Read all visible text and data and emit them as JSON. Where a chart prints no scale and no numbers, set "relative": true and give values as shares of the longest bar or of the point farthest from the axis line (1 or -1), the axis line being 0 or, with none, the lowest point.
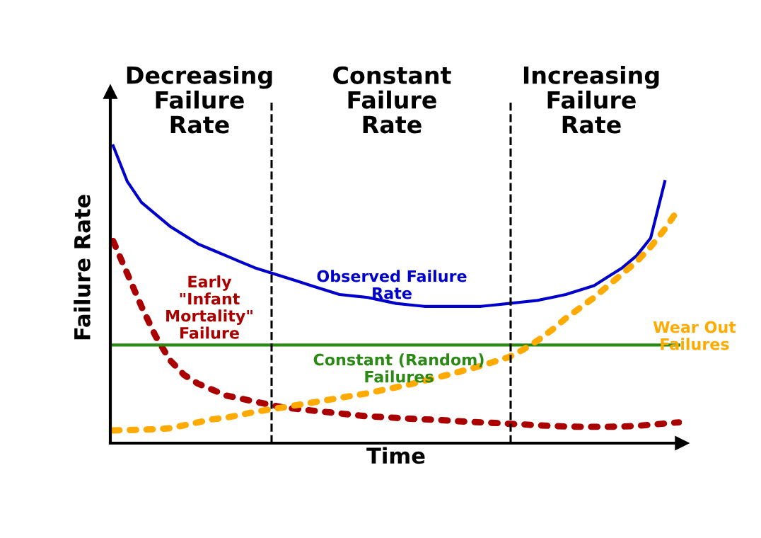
{
  "chart_data": {
    "type": "line",
    "relative": true,
    "xlabel": "Time",
    "ylabel": "Failure Rate",
    "categories": [
      null,
      null,
      null,
      null,
      null,
      null,
      null,
      null,
      null,
      null,
      null,
      null,
      null,
      null,
      null,
      null,
      null,
      null,
      null,
      null,
      null,
      null,
      null,
      null,
      null,
      null,
      null,
      null,
      null,
      null,
      null,
      null,
      null,
      null,
      null,
      null,
      null,
      null,
      null,
      null,
      null
    ],
    "series": [
      {
        "name": "Observed Failure\nRate",
        "color": "#0000cc",
        "line_style": "solid",
        "values": [
          1.0,
          0.88,
          0.81,
          0.77,
          0.73,
          0.7,
          0.67,
          0.65,
          0.63,
          0.61,
          0.59,
          0.575,
          0.56,
          0.545,
          0.53,
          0.515,
          0.5,
          0.495,
          0.49,
          0.48,
          0.47,
          0.465,
          0.46,
          0.46,
          0.46,
          0.46,
          0.46,
          0.465,
          0.47,
          0.475,
          0.48,
          0.49,
          0.5,
          0.515,
          0.53,
          0.56,
          0.59,
          0.63,
          0.69,
          0.88,
          null
        ]
      },
      {
        "name": "Early\n\"Infant\nMortality\"\nFailure",
        "color": "#aa0000",
        "line_style": "dotted",
        "values": [
          0.68,
          0.57,
          0.46,
          0.36,
          0.28,
          0.23,
          0.2,
          0.18,
          0.16,
          0.15,
          0.14,
          0.13,
          0.12,
          0.115,
          0.11,
          0.105,
          0.1,
          0.095,
          0.09,
          0.088,
          0.085,
          0.082,
          0.08,
          0.078,
          0.075,
          0.072,
          0.07,
          0.068,
          0.065,
          0.063,
          0.06,
          0.058,
          0.056,
          0.055,
          0.055,
          0.055,
          0.056,
          0.058,
          0.062,
          0.066,
          0.07
        ]
      },
      {
        "name": "Constant (Random)\nFailures",
        "color": "#2a8a14",
        "line_style": "solid",
        "values": [
          0.33,
          0.33,
          0.33,
          0.33,
          0.33,
          0.33,
          0.33,
          0.33,
          0.33,
          0.33,
          0.33,
          0.33,
          0.33,
          0.33,
          0.33,
          0.33,
          0.33,
          0.33,
          0.33,
          0.33,
          0.33,
          0.33,
          0.33,
          0.33,
          0.33,
          0.33,
          0.33,
          0.33,
          0.33,
          0.33,
          0.33,
          0.33,
          0.33,
          0.33,
          0.33,
          0.33,
          0.33,
          0.33,
          0.33,
          0.33,
          0.33
        ]
      },
      {
        "name": "Wear Out\nFailures",
        "color": "#ffaa00",
        "line_style": "dotted",
        "values": [
          0.043,
          0.044,
          0.045,
          0.047,
          0.05,
          0.06,
          0.07,
          0.08,
          0.086,
          0.095,
          0.105,
          0.113,
          0.12,
          0.128,
          0.136,
          0.144,
          0.152,
          0.16,
          0.168,
          0.178,
          0.188,
          0.198,
          0.21,
          0.222,
          0.234,
          0.247,
          0.26,
          0.275,
          0.29,
          0.315,
          0.345,
          0.38,
          0.42,
          0.455,
          0.49,
          0.53,
          0.57,
          0.61,
          0.66,
          0.72,
          0.79
        ]
      }
    ],
    "annotations": [
      "Decreasing\nFailure\nRate",
      "Constant\nFailure\nRate",
      "Increasing\nFailure\nRate"
    ],
    "legend": false,
    "marker": "none"
  }
}
